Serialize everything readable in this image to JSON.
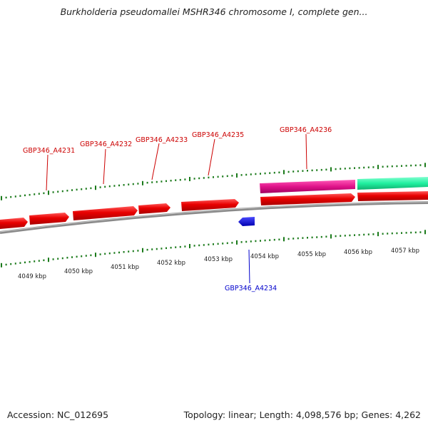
{
  "title": "Burkholderia pseudomallei MSHR346 chromosome I, complete gen...",
  "footer": {
    "accession": "Accession: NC_012695",
    "info": "Topology: linear; Length: 4,098,576 bp; Genes: 4,262"
  },
  "colors": {
    "forward_gene": "#e00000",
    "reverse_gene": "#1010d0",
    "magenta_feature": "#e0138a",
    "green_feature": "#20f0a0",
    "ticks": "#1a7a1a",
    "backbone": "#808080",
    "forward_label": "#cc0000",
    "reverse_label": "#0000cc"
  },
  "kbp_labels": [
    "4049 kbp",
    "4050 kbp",
    "4051 kbp",
    "4052 kbp",
    "4053 kbp",
    "4054 kbp",
    "4055 kbp",
    "4056 kbp",
    "4057 kbp"
  ],
  "gene_labels_forward": [
    "GBP346_A4231",
    "GBP346_A4232",
    "GBP346_A4233",
    "GBP346_A4235",
    "GBP346_A4236"
  ],
  "gene_labels_reverse": [
    "GBP346_A4234"
  ]
}
